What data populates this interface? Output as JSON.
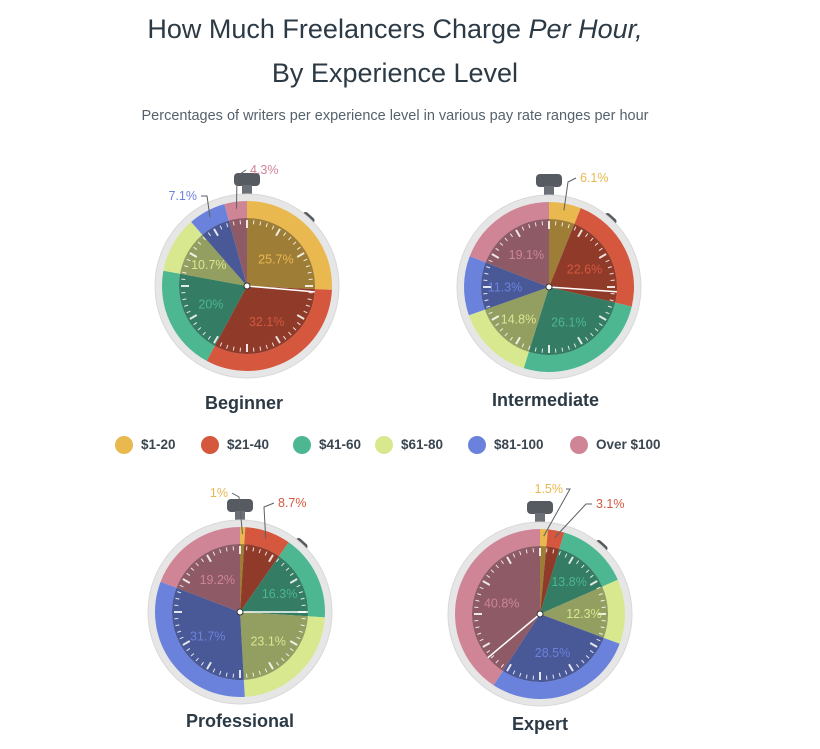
{
  "header": {
    "title_line1_plain": "How Much Freelancers Charge ",
    "title_line1_italic": "Per Hour,",
    "title_line2": "By Experience Level",
    "subtitle": "Percentages of writers per experience level in various pay rate ranges per hour"
  },
  "legend": [
    {
      "label": "$1-20",
      "color": "#e9b84f"
    },
    {
      "label": "$21-40",
      "color": "#d4573e"
    },
    {
      "label": "$41-60",
      "color": "#4cb791"
    },
    {
      "label": "$61-80",
      "color": "#d8e88f"
    },
    {
      "label": "$81-100",
      "color": "#6b82dc"
    },
    {
      "label": "Over $100",
      "color": "#cf8596"
    }
  ],
  "chart_data": [
    {
      "type": "pie",
      "title": "Beginner",
      "categories": [
        "$1-20",
        "$21-40",
        "$41-60",
        "$61-80",
        "$81-100",
        "Over $100"
      ],
      "values": [
        25.7,
        32.1,
        20,
        10.7,
        7.1,
        4.3
      ],
      "value_labels": [
        "25.7%",
        "32.1%",
        "20%",
        "10.7%",
        "7.1%",
        "4.3%"
      ],
      "callouts": [
        "$81-100",
        "Over $100"
      ]
    },
    {
      "type": "pie",
      "title": "Intermediate",
      "categories": [
        "$1-20",
        "$21-40",
        "$41-60",
        "$61-80",
        "$81-100",
        "Over $100"
      ],
      "values": [
        6.1,
        22.6,
        26.1,
        14.8,
        11.3,
        19.1
      ],
      "value_labels": [
        "6.1%",
        "22.6%",
        "26.1%",
        "14.8%",
        "11.3%",
        "19.1%"
      ],
      "callouts": [
        "$1-20"
      ]
    },
    {
      "type": "pie",
      "title": "Professional",
      "categories": [
        "$1-20",
        "$21-40",
        "$41-60",
        "$61-80",
        "$81-100",
        "Over $100"
      ],
      "values": [
        1,
        8.7,
        16.3,
        23.1,
        31.7,
        19.2
      ],
      "value_labels": [
        "1%",
        "8.7%",
        "16.3%",
        "23.1%",
        "31.7%",
        "19.2%"
      ],
      "callouts": [
        "$1-20",
        "$21-40"
      ]
    },
    {
      "type": "pie",
      "title": "Expert",
      "categories": [
        "$1-20",
        "$21-40",
        "$41-60",
        "$61-80",
        "$81-100",
        "Over $100"
      ],
      "values": [
        1.5,
        3.1,
        13.8,
        12.3,
        28.5,
        40.8
      ],
      "value_labels": [
        "1.5%",
        "3.1%",
        "13.8%",
        "12.3%",
        "28.5%",
        "40.8%"
      ],
      "callouts": [
        "$1-20",
        "$21-40"
      ]
    }
  ]
}
